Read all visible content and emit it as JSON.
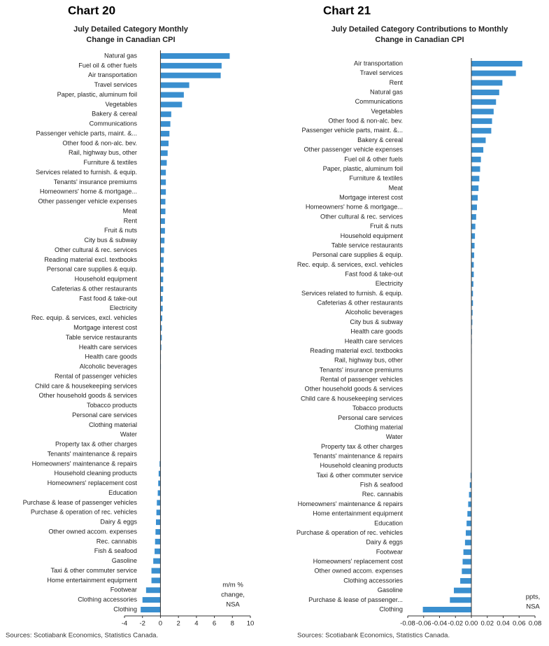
{
  "chart_data": [
    {
      "type": "bar",
      "orientation": "horizontal",
      "label": "Chart 20",
      "title": [
        "July Detailed Category Monthly",
        "Change in Canadian CPI"
      ],
      "categories": [
        "Natural gas",
        "Fuel oil & other fuels",
        "Air transportation",
        "Travel services",
        "Paper, plastic, aluminum foil",
        "Vegetables",
        "Bakery & cereal",
        "Communications",
        "Passenger vehicle parts, maint. &...",
        "Other food & non-alc. bev.",
        "Rail, highway bus, other",
        "Furniture & textiles",
        "Services related to furnish. & equip.",
        "Tenants' insurance premiums",
        "Homeowners' home & mortgage...",
        "Other passenger vehicle expenses",
        "Meat",
        "Rent",
        "Fruit & nuts",
        "City bus & subway",
        "Other cultural & rec. services",
        "Reading material excl. textbooks",
        "Personal care supplies & equip.",
        "Household equipment",
        "Cafeterias & other restaurants",
        "Fast food & take-out",
        "Electricity",
        "Rec. equip. & services, excl. vehicles",
        "Mortgage interest cost",
        "Table service restaurants",
        "Health care services",
        "Health care goods",
        "Alcoholic beverages",
        "Rental of passenger vehicles",
        "Child care & housekeeping services",
        "Other household goods & services",
        "Tobacco products",
        "Personal care services",
        "Clothing material",
        "Water",
        "Property tax & other charges",
        "Tenants' maintenance & repairs",
        "Homeowners' maintenance & repairs",
        "Household cleaning products",
        "Homeowners' replacement cost",
        "Education",
        "Purchase & lease of passenger vehicles",
        "Purchase & operation of rec. vehicles",
        "Dairy & eggs",
        "Other owned accom. expenses",
        "Rec. cannabis",
        "Fish & seafood",
        "Gasoline",
        "Taxi & other commuter service",
        "Home entertainment equipment",
        "Footwear",
        "Clothing accessories",
        "Clothing"
      ],
      "values": [
        7.7,
        6.8,
        6.7,
        3.2,
        2.6,
        2.4,
        1.2,
        1.1,
        1.0,
        0.9,
        0.8,
        0.7,
        0.6,
        0.6,
        0.6,
        0.55,
        0.55,
        0.5,
        0.5,
        0.45,
        0.4,
        0.35,
        0.35,
        0.3,
        0.3,
        0.25,
        0.25,
        0.2,
        0.15,
        0.15,
        0.1,
        0.05,
        0.05,
        0,
        0,
        0,
        0,
        0,
        0,
        0,
        0,
        0,
        -0.1,
        -0.2,
        -0.25,
        -0.3,
        -0.4,
        -0.45,
        -0.5,
        -0.55,
        -0.6,
        -0.65,
        -0.8,
        -1.0,
        -1.0,
        -1.6,
        -2.0,
        -2.2
      ],
      "color": "#3a8fcf",
      "xlim": [
        -4,
        10
      ],
      "xticks": [
        -4,
        -2,
        0,
        2,
        4,
        6,
        8,
        10
      ],
      "note": [
        "m/m %",
        "change,",
        "NSA"
      ],
      "source": "Sources: Scotiabank Economics, Statistics Canada."
    },
    {
      "type": "bar",
      "orientation": "horizontal",
      "label": "Chart 21",
      "title": [
        "July Detailed Category Contributions to Monthly",
        "Change in Canadian CPI"
      ],
      "categories": [
        "Air transportation",
        "Travel services",
        "Rent",
        "Natural gas",
        "Communications",
        "Vegetables",
        "Other food & non-alc. bev.",
        "Passenger vehicle parts, maint. &...",
        "Bakery & cereal",
        "Other passenger vehicle expenses",
        "Fuel oil & other fuels",
        "Paper, plastic, aluminum foil",
        "Furniture & textiles",
        "Meat",
        "Mortgage interest cost",
        "Homeowners' home & mortgage...",
        "Other cultural & rec. services",
        "Fruit & nuts",
        "Household equipment",
        "Table service restaurants",
        "Personal care supplies & equip.",
        "Rec. equip. & services, excl. vehicles",
        "Fast food & take-out",
        "Electricity",
        "Services related to furnish. & equip.",
        "Cafeterias & other restaurants",
        "Alcoholic beverages",
        "City bus & subway",
        "Health care goods",
        "Health care services",
        "Reading material excl. textbooks",
        "Rail, highway bus, other",
        "Tenants' insurance premiums",
        "Rental of passenger vehicles",
        "Other household goods & services",
        "Child care & housekeeping services",
        "Tobacco products",
        "Personal care services",
        "Clothing material",
        "Water",
        "Property tax & other charges",
        "Tenants' maintenance & repairs",
        "Household cleaning products",
        "Taxi & other commuter service",
        "Fish & seafood",
        "Rec. cannabis",
        "Homeowners' maintenance & repairs",
        "Home entertainment equipment",
        "Education",
        "Purchase & operation of rec. vehicles",
        "Dairy & eggs",
        "Footwear",
        "Homeowners' replacement cost",
        "Other owned accom. expenses",
        "Clothing accessories",
        "Gasoline",
        "Purchase & lease of passenger...",
        "Clothing"
      ],
      "values": [
        0.064,
        0.056,
        0.039,
        0.035,
        0.031,
        0.028,
        0.026,
        0.025,
        0.018,
        0.015,
        0.012,
        0.011,
        0.01,
        0.009,
        0.008,
        0.007,
        0.006,
        0.005,
        0.0045,
        0.004,
        0.0035,
        0.003,
        0.003,
        0.0025,
        0.002,
        0.002,
        0.0015,
        0.0012,
        0.0008,
        0.0006,
        0.0005,
        0.0004,
        0.0003,
        0,
        0,
        0,
        0,
        0,
        0,
        0,
        0,
        0,
        0,
        -0.001,
        -0.002,
        -0.003,
        -0.004,
        -0.005,
        -0.006,
        -0.007,
        -0.008,
        -0.01,
        -0.011,
        -0.012,
        -0.014,
        -0.022,
        -0.027,
        -0.061
      ],
      "color": "#3a8fcf",
      "xlim": [
        -0.08,
        0.08
      ],
      "xticks": [
        -0.08,
        -0.06,
        -0.04,
        -0.02,
        {
          "value": 0,
          "label": "0.00"
        },
        0.02,
        0.04,
        0.06,
        0.08
      ],
      "note": [
        "ppts,",
        "NSA"
      ],
      "source": "Sources: Scotiabank Economics, Statistics Canada."
    }
  ]
}
